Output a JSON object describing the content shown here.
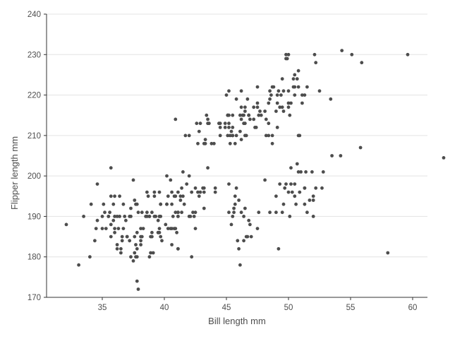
{
  "chart_data": {
    "type": "scatter",
    "title": "",
    "xlabel": "Bill length mm",
    "ylabel": "Flipper length mm",
    "xlim": [
      30.5,
      61.2
    ],
    "ylim": [
      170,
      240
    ],
    "x_ticks": [
      35,
      40,
      45,
      50,
      55,
      60
    ],
    "y_ticks": [
      170,
      180,
      190,
      200,
      210,
      220,
      230,
      240
    ],
    "grid": "horizontal-major-only",
    "legend": "none",
    "colors": {
      "point": "#4d4d4d",
      "gridline": "#e3e3e3",
      "axis_line": "#333333",
      "text": "#4d4d4d",
      "background": "#ffffff"
    },
    "points": [
      [
        39.1,
        181
      ],
      [
        39.5,
        186
      ],
      [
        40.3,
        195
      ],
      [
        36.7,
        193
      ],
      [
        39.3,
        190
      ],
      [
        38.9,
        181
      ],
      [
        39.2,
        195
      ],
      [
        34.1,
        193
      ],
      [
        42.0,
        190
      ],
      [
        37.8,
        186
      ],
      [
        37.8,
        180
      ],
      [
        41.1,
        182
      ],
      [
        38.6,
        191
      ],
      [
        34.6,
        198
      ],
      [
        36.6,
        185
      ],
      [
        38.7,
        195
      ],
      [
        42.5,
        197
      ],
      [
        34.4,
        184
      ],
      [
        46.0,
        194
      ],
      [
        37.8,
        174
      ],
      [
        37.7,
        180
      ],
      [
        35.9,
        189
      ],
      [
        38.2,
        185
      ],
      [
        38.8,
        180
      ],
      [
        35.3,
        187
      ],
      [
        40.6,
        183
      ],
      [
        40.5,
        187
      ],
      [
        37.9,
        172
      ],
      [
        40.5,
        199
      ],
      [
        39.5,
        189
      ],
      [
        37.2,
        184
      ],
      [
        39.5,
        186
      ],
      [
        40.9,
        195
      ],
      [
        36.4,
        195
      ],
      [
        39.2,
        196
      ],
      [
        38.8,
        190
      ],
      [
        42.2,
        180
      ],
      [
        37.6,
        181
      ],
      [
        39.8,
        184
      ],
      [
        36.5,
        182
      ],
      [
        40.8,
        195
      ],
      [
        36.0,
        186
      ],
      [
        44.1,
        196
      ],
      [
        37.0,
        185
      ],
      [
        39.6,
        190
      ],
      [
        41.1,
        182
      ],
      [
        37.5,
        179
      ],
      [
        36.0,
        190
      ],
      [
        42.3,
        191
      ],
      [
        39.6,
        186
      ],
      [
        40.1,
        188
      ],
      [
        35.0,
        190
      ],
      [
        42.0,
        200
      ],
      [
        34.5,
        187
      ],
      [
        41.4,
        191
      ],
      [
        39.0,
        186
      ],
      [
        40.6,
        193
      ],
      [
        36.5,
        181
      ],
      [
        37.6,
        194
      ],
      [
        35.7,
        185
      ],
      [
        41.3,
        195
      ],
      [
        37.6,
        185
      ],
      [
        41.1,
        196
      ],
      [
        36.4,
        190
      ],
      [
        41.6,
        193
      ],
      [
        35.5,
        190
      ],
      [
        41.1,
        191
      ],
      [
        35.9,
        193
      ],
      [
        41.8,
        198
      ],
      [
        33.5,
        190
      ],
      [
        39.7,
        190
      ],
      [
        39.6,
        196
      ],
      [
        45.8,
        197
      ],
      [
        35.5,
        190
      ],
      [
        42.8,
        195
      ],
      [
        40.9,
        191
      ],
      [
        37.2,
        190
      ],
      [
        36.2,
        182
      ],
      [
        42.1,
        190
      ],
      [
        34.6,
        189
      ],
      [
        42.9,
        196
      ],
      [
        36.7,
        187
      ],
      [
        35.1,
        193
      ],
      [
        37.3,
        180
      ],
      [
        41.3,
        194
      ],
      [
        36.3,
        187
      ],
      [
        36.9,
        189
      ],
      [
        38.3,
        187
      ],
      [
        38.9,
        185
      ],
      [
        35.7,
        188
      ],
      [
        41.1,
        190
      ],
      [
        34.0,
        180
      ],
      [
        39.6,
        187
      ],
      [
        36.2,
        183
      ],
      [
        40.8,
        187
      ],
      [
        38.1,
        183
      ],
      [
        40.3,
        187
      ],
      [
        33.1,
        178
      ],
      [
        43.2,
        196
      ],
      [
        35.0,
        187
      ],
      [
        41.0,
        186
      ],
      [
        37.7,
        183
      ],
      [
        37.8,
        182
      ],
      [
        37.9,
        191
      ],
      [
        39.7,
        193
      ],
      [
        38.6,
        190
      ],
      [
        38.2,
        191
      ],
      [
        38.1,
        185
      ],
      [
        43.2,
        197
      ],
      [
        38.1,
        184
      ],
      [
        45.6,
        192
      ],
      [
        39.7,
        185
      ],
      [
        42.2,
        196
      ],
      [
        39.6,
        190
      ],
      [
        42.7,
        196
      ],
      [
        38.6,
        196
      ],
      [
        37.3,
        190
      ],
      [
        35.7,
        195
      ],
      [
        41.1,
        191
      ],
      [
        36.2,
        190
      ],
      [
        37.7,
        193
      ],
      [
        40.2,
        193
      ],
      [
        41.4,
        197
      ],
      [
        35.2,
        191
      ],
      [
        40.6,
        196
      ],
      [
        38.8,
        190
      ],
      [
        41.5,
        195
      ],
      [
        39.0,
        191
      ],
      [
        44.1,
        197
      ],
      [
        38.5,
        190
      ],
      [
        43.1,
        197
      ],
      [
        36.8,
        190
      ],
      [
        37.5,
        199
      ],
      [
        38.1,
        187
      ],
      [
        41.1,
        190
      ],
      [
        35.6,
        191
      ],
      [
        40.2,
        200
      ],
      [
        37.0,
        185
      ],
      [
        39.7,
        193
      ],
      [
        40.2,
        193
      ],
      [
        40.6,
        187
      ],
      [
        32.1,
        188
      ],
      [
        40.7,
        190
      ],
      [
        37.3,
        192
      ],
      [
        39.0,
        185
      ],
      [
        39.2,
        190
      ],
      [
        36.6,
        184
      ],
      [
        36.0,
        195
      ],
      [
        37.8,
        193
      ],
      [
        36.0,
        187
      ],
      [
        41.5,
        201
      ],
      [
        35.7,
        202
      ],
      [
        46.5,
        192
      ],
      [
        50.0,
        196
      ],
      [
        51.3,
        193
      ],
      [
        45.4,
        188
      ],
      [
        52.7,
        197
      ],
      [
        45.2,
        198
      ],
      [
        46.1,
        178
      ],
      [
        51.3,
        197
      ],
      [
        46.0,
        182
      ],
      [
        51.3,
        197
      ],
      [
        46.6,
        185
      ],
      [
        51.7,
        194
      ],
      [
        47.0,
        185
      ],
      [
        52.0,
        190
      ],
      [
        45.9,
        184
      ],
      [
        50.5,
        195
      ],
      [
        50.3,
        196
      ],
      [
        58.0,
        181
      ],
      [
        46.4,
        190
      ],
      [
        49.2,
        182
      ],
      [
        42.4,
        190
      ],
      [
        48.5,
        191
      ],
      [
        43.2,
        192
      ],
      [
        50.6,
        193
      ],
      [
        46.7,
        185
      ],
      [
        52.0,
        194
      ],
      [
        50.5,
        198
      ],
      [
        49.5,
        191
      ],
      [
        46.4,
        184
      ],
      [
        52.8,
        201
      ],
      [
        40.9,
        187
      ],
      [
        54.2,
        205
      ],
      [
        42.5,
        187
      ],
      [
        51.0,
        201
      ],
      [
        49.7,
        197
      ],
      [
        47.5,
        187
      ],
      [
        47.6,
        191
      ],
      [
        52.0,
        195
      ],
      [
        46.9,
        188
      ],
      [
        53.5,
        205
      ],
      [
        49.0,
        195
      ],
      [
        46.2,
        191
      ],
      [
        50.9,
        210
      ],
      [
        45.5,
        190
      ],
      [
        50.9,
        196
      ],
      [
        50.8,
        201
      ],
      [
        50.1,
        190
      ],
      [
        49.0,
        191
      ],
      [
        51.5,
        191
      ],
      [
        49.8,
        198
      ],
      [
        48.1,
        199
      ],
      [
        51.4,
        201
      ],
      [
        45.7,
        193
      ],
      [
        50.7,
        203
      ],
      [
        42.5,
        191
      ],
      [
        52.2,
        197
      ],
      [
        45.2,
        191
      ],
      [
        49.3,
        198
      ],
      [
        50.2,
        202
      ],
      [
        45.6,
        191
      ],
      [
        51.9,
        201
      ],
      [
        46.8,
        189
      ],
      [
        45.7,
        195
      ],
      [
        55.8,
        207
      ],
      [
        43.5,
        202
      ],
      [
        49.6,
        193
      ],
      [
        50.8,
        210
      ],
      [
        50.2,
        198
      ],
      [
        46.1,
        211
      ],
      [
        50.0,
        230
      ],
      [
        48.7,
        210
      ],
      [
        50.0,
        218
      ],
      [
        47.6,
        215
      ],
      [
        46.5,
        210
      ],
      [
        45.4,
        211
      ],
      [
        46.7,
        219
      ],
      [
        43.3,
        209
      ],
      [
        46.8,
        215
      ],
      [
        40.9,
        214
      ],
      [
        49.0,
        216
      ],
      [
        45.5,
        210
      ],
      [
        48.4,
        213
      ],
      [
        45.8,
        210
      ],
      [
        49.3,
        217
      ],
      [
        42.0,
        210
      ],
      [
        49.2,
        221
      ],
      [
        46.2,
        209
      ],
      [
        48.7,
        222
      ],
      [
        50.2,
        218
      ],
      [
        45.1,
        215
      ],
      [
        46.5,
        213
      ],
      [
        46.3,
        215
      ],
      [
        42.9,
        213
      ],
      [
        46.1,
        215
      ],
      [
        44.5,
        213
      ],
      [
        47.8,
        215
      ],
      [
        48.2,
        210
      ],
      [
        50.0,
        217
      ],
      [
        47.3,
        212
      ],
      [
        42.8,
        211
      ],
      [
        45.1,
        210
      ],
      [
        59.6,
        230
      ],
      [
        49.1,
        212
      ],
      [
        48.4,
        210
      ],
      [
        42.6,
        213
      ],
      [
        44.4,
        213
      ],
      [
        44.0,
        208
      ],
      [
        48.7,
        208
      ],
      [
        42.7,
        208
      ],
      [
        49.6,
        216
      ],
      [
        45.3,
        210
      ],
      [
        49.6,
        221
      ],
      [
        50.5,
        222
      ],
      [
        43.6,
        213
      ],
      [
        45.5,
        215
      ],
      [
        50.5,
        220
      ],
      [
        44.9,
        212
      ],
      [
        45.2,
        221
      ],
      [
        46.6,
        210
      ],
      [
        48.5,
        219
      ],
      [
        45.1,
        215
      ],
      [
        50.1,
        215
      ],
      [
        46.5,
        216
      ],
      [
        45.0,
        220
      ],
      [
        43.8,
        208
      ],
      [
        45.5,
        210
      ],
      [
        43.2,
        208
      ],
      [
        50.4,
        224
      ],
      [
        45.3,
        208
      ],
      [
        46.2,
        221
      ],
      [
        45.7,
        208
      ],
      [
        54.3,
        231
      ],
      [
        45.8,
        219
      ],
      [
        49.8,
        230
      ],
      [
        46.2,
        214
      ],
      [
        49.5,
        217
      ],
      [
        43.5,
        214
      ],
      [
        50.7,
        224
      ],
      [
        47.7,
        216
      ],
      [
        46.4,
        213
      ],
      [
        48.2,
        214
      ],
      [
        46.5,
        217
      ],
      [
        46.4,
        215
      ],
      [
        48.6,
        220
      ],
      [
        47.5,
        222
      ],
      [
        51.1,
        218
      ],
      [
        45.2,
        215
      ],
      [
        45.2,
        212
      ],
      [
        49.1,
        220
      ],
      [
        52.5,
        221
      ],
      [
        47.4,
        212
      ],
      [
        50.0,
        221
      ],
      [
        44.9,
        213
      ],
      [
        50.8,
        222
      ],
      [
        43.4,
        215
      ],
      [
        51.3,
        220
      ],
      [
        47.5,
        217
      ],
      [
        52.1,
        230
      ],
      [
        47.5,
        218
      ],
      [
        52.2,
        228
      ],
      [
        45.5,
        212
      ],
      [
        49.5,
        224
      ],
      [
        44.5,
        212
      ],
      [
        50.8,
        226
      ],
      [
        49.4,
        220
      ],
      [
        46.9,
        214
      ],
      [
        48.4,
        218
      ],
      [
        51.1,
        220
      ],
      [
        48.5,
        221
      ],
      [
        55.9,
        228
      ],
      [
        47.2,
        217
      ],
      [
        49.1,
        218
      ],
      [
        46.8,
        215
      ],
      [
        41.7,
        210
      ],
      [
        53.4,
        219
      ],
      [
        43.3,
        208
      ],
      [
        48.1,
        216
      ],
      [
        50.5,
        225
      ],
      [
        49.8,
        229
      ],
      [
        43.5,
        213
      ],
      [
        51.5,
        222
      ],
      [
        46.2,
        217
      ],
      [
        55.1,
        230
      ],
      [
        44.5,
        210
      ],
      [
        48.8,
        222
      ],
      [
        47.2,
        214
      ],
      [
        46.8,
        215
      ],
      [
        50.4,
        222
      ],
      [
        45.2,
        213
      ],
      [
        49.9,
        229
      ],
      [
        62.5,
        204.5
      ]
    ]
  }
}
